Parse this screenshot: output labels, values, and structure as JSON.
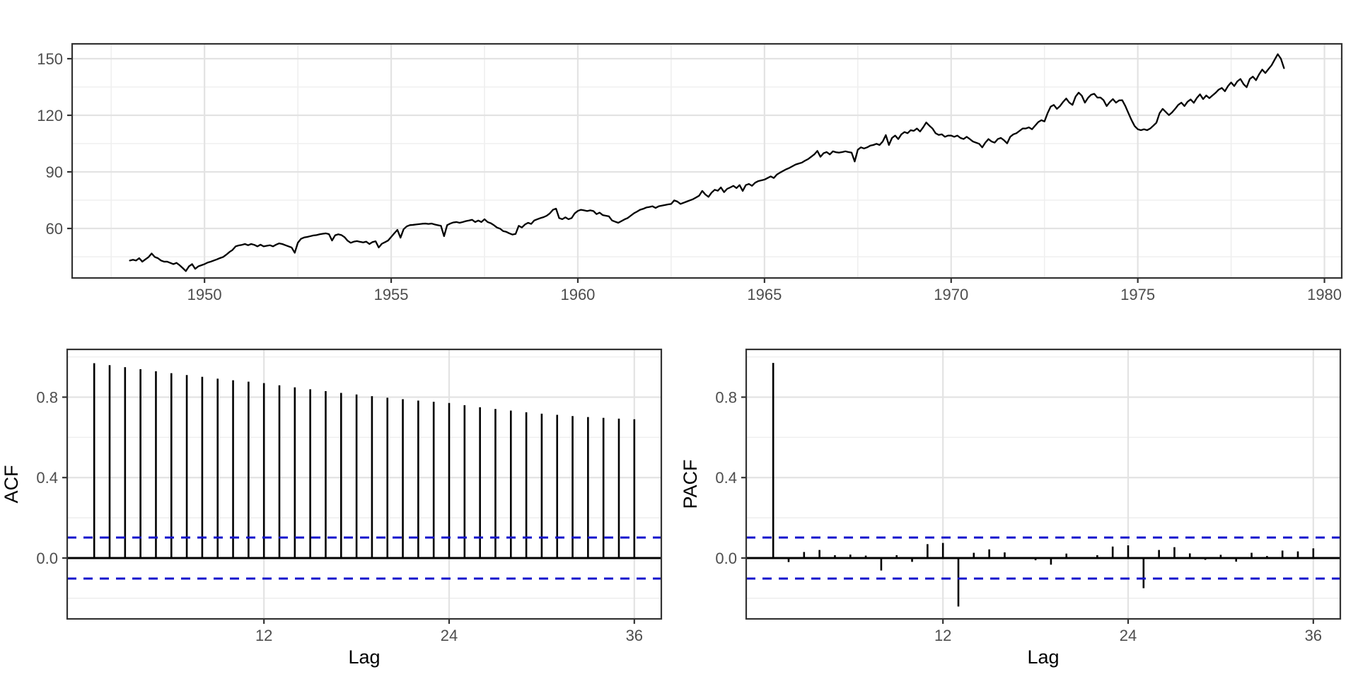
{
  "figure": {
    "background": "#FFFFFF",
    "style": {
      "line_color": "#000000",
      "conf_color": "#1414CC",
      "grid_major": "#E3E3E3",
      "grid_minor": "#EFEFEF",
      "panel_border": "#333333",
      "tick_color": "#333333",
      "tick_label_color": "#4D4D4D",
      "axis_title_color": "#000000"
    }
  },
  "chart_data": [
    {
      "id": "timeseries",
      "type": "line",
      "title": "",
      "xlabel": "",
      "ylabel": "",
      "x_start": 1948,
      "frequency": 12,
      "values": [
        43.0,
        43.4,
        43.0,
        44.25,
        42.4,
        43.6,
        44.8,
        46.75,
        44.9,
        44.25,
        43.0,
        42.4,
        42.4,
        41.75,
        41.1,
        41.75,
        40.5,
        39.0,
        37.4,
        39.9,
        41.1,
        38.6,
        39.9,
        40.5,
        41.1,
        41.9,
        42.4,
        43.0,
        43.6,
        44.3,
        44.9,
        46.1,
        47.5,
        48.6,
        50.5,
        51.0,
        51.3,
        51.75,
        51.1,
        51.75,
        51.3,
        50.5,
        51.4,
        50.5,
        50.8,
        51.1,
        50.5,
        51.4,
        52.1,
        51.75,
        51.1,
        50.5,
        49.9,
        47.1,
        52.4,
        54.5,
        55.2,
        55.5,
        55.9,
        56.3,
        56.5,
        56.9,
        57.2,
        57.4,
        57.0,
        53.6,
        56.4,
        56.9,
        56.5,
        55.4,
        53.5,
        52.4,
        53.0,
        53.3,
        52.9,
        52.6,
        53.0,
        51.75,
        52.8,
        53.2,
        49.9,
        51.9,
        52.7,
        53.6,
        55.5,
        57.4,
        59.25,
        55.1,
        59.6,
        61.1,
        61.75,
        61.9,
        62.1,
        62.3,
        62.5,
        62.6,
        62.4,
        62.6,
        62.1,
        61.75,
        61.4,
        55.9,
        61.75,
        62.6,
        63.2,
        63.4,
        63.0,
        63.4,
        63.9,
        64.2,
        64.6,
        63.4,
        64.2,
        63.4,
        64.9,
        63.4,
        62.8,
        61.75,
        60.5,
        59.9,
        58.6,
        58.2,
        57.4,
        56.75,
        57.1,
        61.4,
        60.5,
        62.1,
        63.0,
        62.4,
        64.25,
        64.9,
        65.5,
        66.0,
        66.75,
        68.0,
        69.9,
        70.5,
        65.5,
        64.9,
        65.9,
        64.9,
        65.5,
        68.0,
        69.3,
        69.9,
        69.6,
        69.25,
        69.6,
        69.25,
        67.6,
        68.4,
        67.1,
        66.75,
        66.4,
        64.25,
        63.6,
        63.0,
        63.9,
        64.8,
        65.5,
        66.75,
        68.0,
        68.9,
        69.9,
        70.4,
        71.1,
        71.4,
        71.75,
        70.9,
        71.75,
        72.1,
        72.4,
        72.75,
        73.0,
        74.9,
        74.25,
        73.0,
        73.6,
        74.25,
        74.9,
        75.5,
        76.4,
        77.4,
        79.9,
        78.0,
        76.75,
        79.0,
        80.5,
        80.0,
        81.75,
        79.25,
        81.0,
        81.75,
        82.6,
        81.4,
        83.0,
        79.9,
        83.0,
        83.6,
        82.6,
        84.25,
        85.1,
        85.5,
        85.9,
        86.75,
        87.6,
        86.75,
        88.6,
        89.6,
        90.5,
        91.4,
        92.1,
        93.0,
        93.9,
        94.4,
        94.9,
        95.9,
        96.75,
        98.0,
        99.25,
        101.1,
        98.0,
        99.9,
        100.5,
        99.25,
        100.9,
        100.4,
        100.2,
        100.5,
        100.9,
        100.5,
        100.2,
        95.5,
        101.75,
        103.0,
        102.4,
        103.0,
        103.9,
        104.25,
        104.9,
        104.25,
        106.1,
        109.5,
        104.25,
        108.0,
        109.25,
        107.4,
        109.9,
        111.1,
        110.5,
        112.1,
        111.75,
        113.0,
        111.4,
        113.6,
        116.2,
        114.5,
        113.0,
        110.5,
        109.6,
        109.9,
        108.6,
        109.25,
        109.25,
        108.6,
        109.25,
        108.0,
        107.4,
        108.6,
        107.4,
        106.1,
        105.5,
        104.9,
        103.0,
        105.5,
        107.4,
        106.1,
        105.5,
        107.4,
        108.0,
        106.75,
        105.1,
        108.6,
        109.9,
        110.5,
        111.75,
        113.0,
        113.0,
        113.6,
        112.6,
        114.5,
        116.4,
        117.4,
        116.75,
        121.1,
        124.6,
        125.5,
        123.4,
        124.9,
        127.1,
        128.9,
        126.7,
        125.5,
        129.9,
        132.0,
        130.4,
        126.7,
        129.25,
        130.9,
        131.4,
        129.4,
        129.4,
        128.0,
        124.9,
        127.0,
        128.6,
        126.7,
        127.9,
        128.0,
        124.9,
        121.1,
        117.4,
        114.25,
        112.6,
        112.1,
        112.6,
        112.1,
        113.0,
        114.5,
        116.1,
        121.1,
        123.4,
        121.75,
        120.1,
        121.5,
        123.4,
        125.5,
        126.7,
        124.9,
        127.2,
        128.4,
        126.6,
        129.25,
        131.1,
        128.6,
        130.5,
        129.1,
        130.5,
        131.9,
        133.6,
        134.5,
        132.75,
        135.5,
        137.4,
        135.5,
        138.0,
        139.25,
        136.5,
        134.9,
        139.25,
        140.5,
        138.6,
        141.75,
        144.25,
        142.4,
        144.5,
        146.5,
        149.5,
        152.4,
        150.0,
        145.0
      ],
      "x_ticks": [
        1950,
        1955,
        1960,
        1965,
        1970,
        1975,
        1980
      ],
      "x_tick_labels": [
        "1950",
        "1955",
        "1960",
        "1965",
        "1970",
        "1975",
        "1980"
      ],
      "x_minor": [
        1947.5,
        1952.5,
        1957.5,
        1962.5,
        1967.5,
        1972.5,
        1977.5
      ],
      "y_ticks": [
        60,
        90,
        120,
        150
      ],
      "y_tick_labels": [
        "60",
        "90",
        "120",
        "150"
      ],
      "y_minor": [
        45,
        75,
        105,
        135
      ],
      "xlim": [
        1946.454,
        1980.463
      ],
      "ylim": [
        33.75,
        157.875
      ],
      "grid": true,
      "legend": "none"
    },
    {
      "id": "acf",
      "type": "lollipop",
      "title": "",
      "xlabel": "Lag",
      "ylabel": "ACF",
      "lags": [
        1,
        2,
        3,
        4,
        5,
        6,
        7,
        8,
        9,
        10,
        11,
        12,
        13,
        14,
        15,
        16,
        17,
        18,
        19,
        20,
        21,
        22,
        23,
        24,
        25,
        26,
        27,
        28,
        29,
        30,
        31,
        32,
        33,
        34,
        35,
        36
      ],
      "values": [
        0.969,
        0.959,
        0.949,
        0.939,
        0.929,
        0.919,
        0.91,
        0.901,
        0.892,
        0.884,
        0.877,
        0.87,
        0.859,
        0.849,
        0.839,
        0.83,
        0.821,
        0.813,
        0.805,
        0.797,
        0.79,
        0.783,
        0.777,
        0.771,
        0.76,
        0.75,
        0.741,
        0.733,
        0.725,
        0.718,
        0.712,
        0.706,
        0.701,
        0.697,
        0.693,
        0.69
      ],
      "conf_level": 0.102,
      "x_ticks": [
        12,
        24,
        36
      ],
      "x_tick_labels": [
        "12",
        "24",
        "36"
      ],
      "y_ticks": [
        0.0,
        0.4,
        0.8
      ],
      "y_tick_labels": [
        "0.0",
        "0.4",
        "0.8"
      ],
      "y_minor": [
        -0.2,
        0.2,
        0.6,
        1.0
      ],
      "xlim": [
        -0.75,
        37.75
      ],
      "ylim": [
        -0.3026,
        1.0374
      ],
      "grid": true,
      "legend": "none"
    },
    {
      "id": "pacf",
      "type": "lollipop",
      "title": "",
      "xlabel": "Lag",
      "ylabel": "PACF",
      "lags": [
        1,
        2,
        3,
        4,
        5,
        6,
        7,
        8,
        9,
        10,
        11,
        12,
        13,
        14,
        15,
        16,
        17,
        18,
        19,
        20,
        21,
        22,
        23,
        24,
        25,
        26,
        27,
        28,
        29,
        30,
        31,
        32,
        33,
        34,
        35,
        36
      ],
      "values": [
        0.97,
        -0.02,
        0.03,
        0.04,
        0.014,
        0.017,
        0.012,
        -0.062,
        0.014,
        -0.019,
        0.069,
        0.075,
        -0.241,
        0.026,
        0.043,
        0.028,
        -0.005,
        -0.011,
        -0.033,
        0.022,
        0.005,
        0.014,
        0.057,
        0.063,
        -0.15,
        0.04,
        0.054,
        0.023,
        -0.009,
        0.016,
        -0.018,
        0.026,
        0.01,
        0.037,
        0.033,
        0.048
      ],
      "conf_level": 0.102,
      "x_ticks": [
        12,
        24,
        36
      ],
      "x_tick_labels": [
        "12",
        "24",
        "36"
      ],
      "y_ticks": [
        0.0,
        0.4,
        0.8
      ],
      "y_tick_labels": [
        "0.0",
        "0.4",
        "0.8"
      ],
      "y_minor": [
        -0.2,
        0.2,
        0.6,
        1.0
      ],
      "xlim": [
        -0.75,
        37.75
      ],
      "ylim": [
        -0.3026,
        1.0374
      ],
      "grid": true,
      "legend": "none"
    }
  ]
}
